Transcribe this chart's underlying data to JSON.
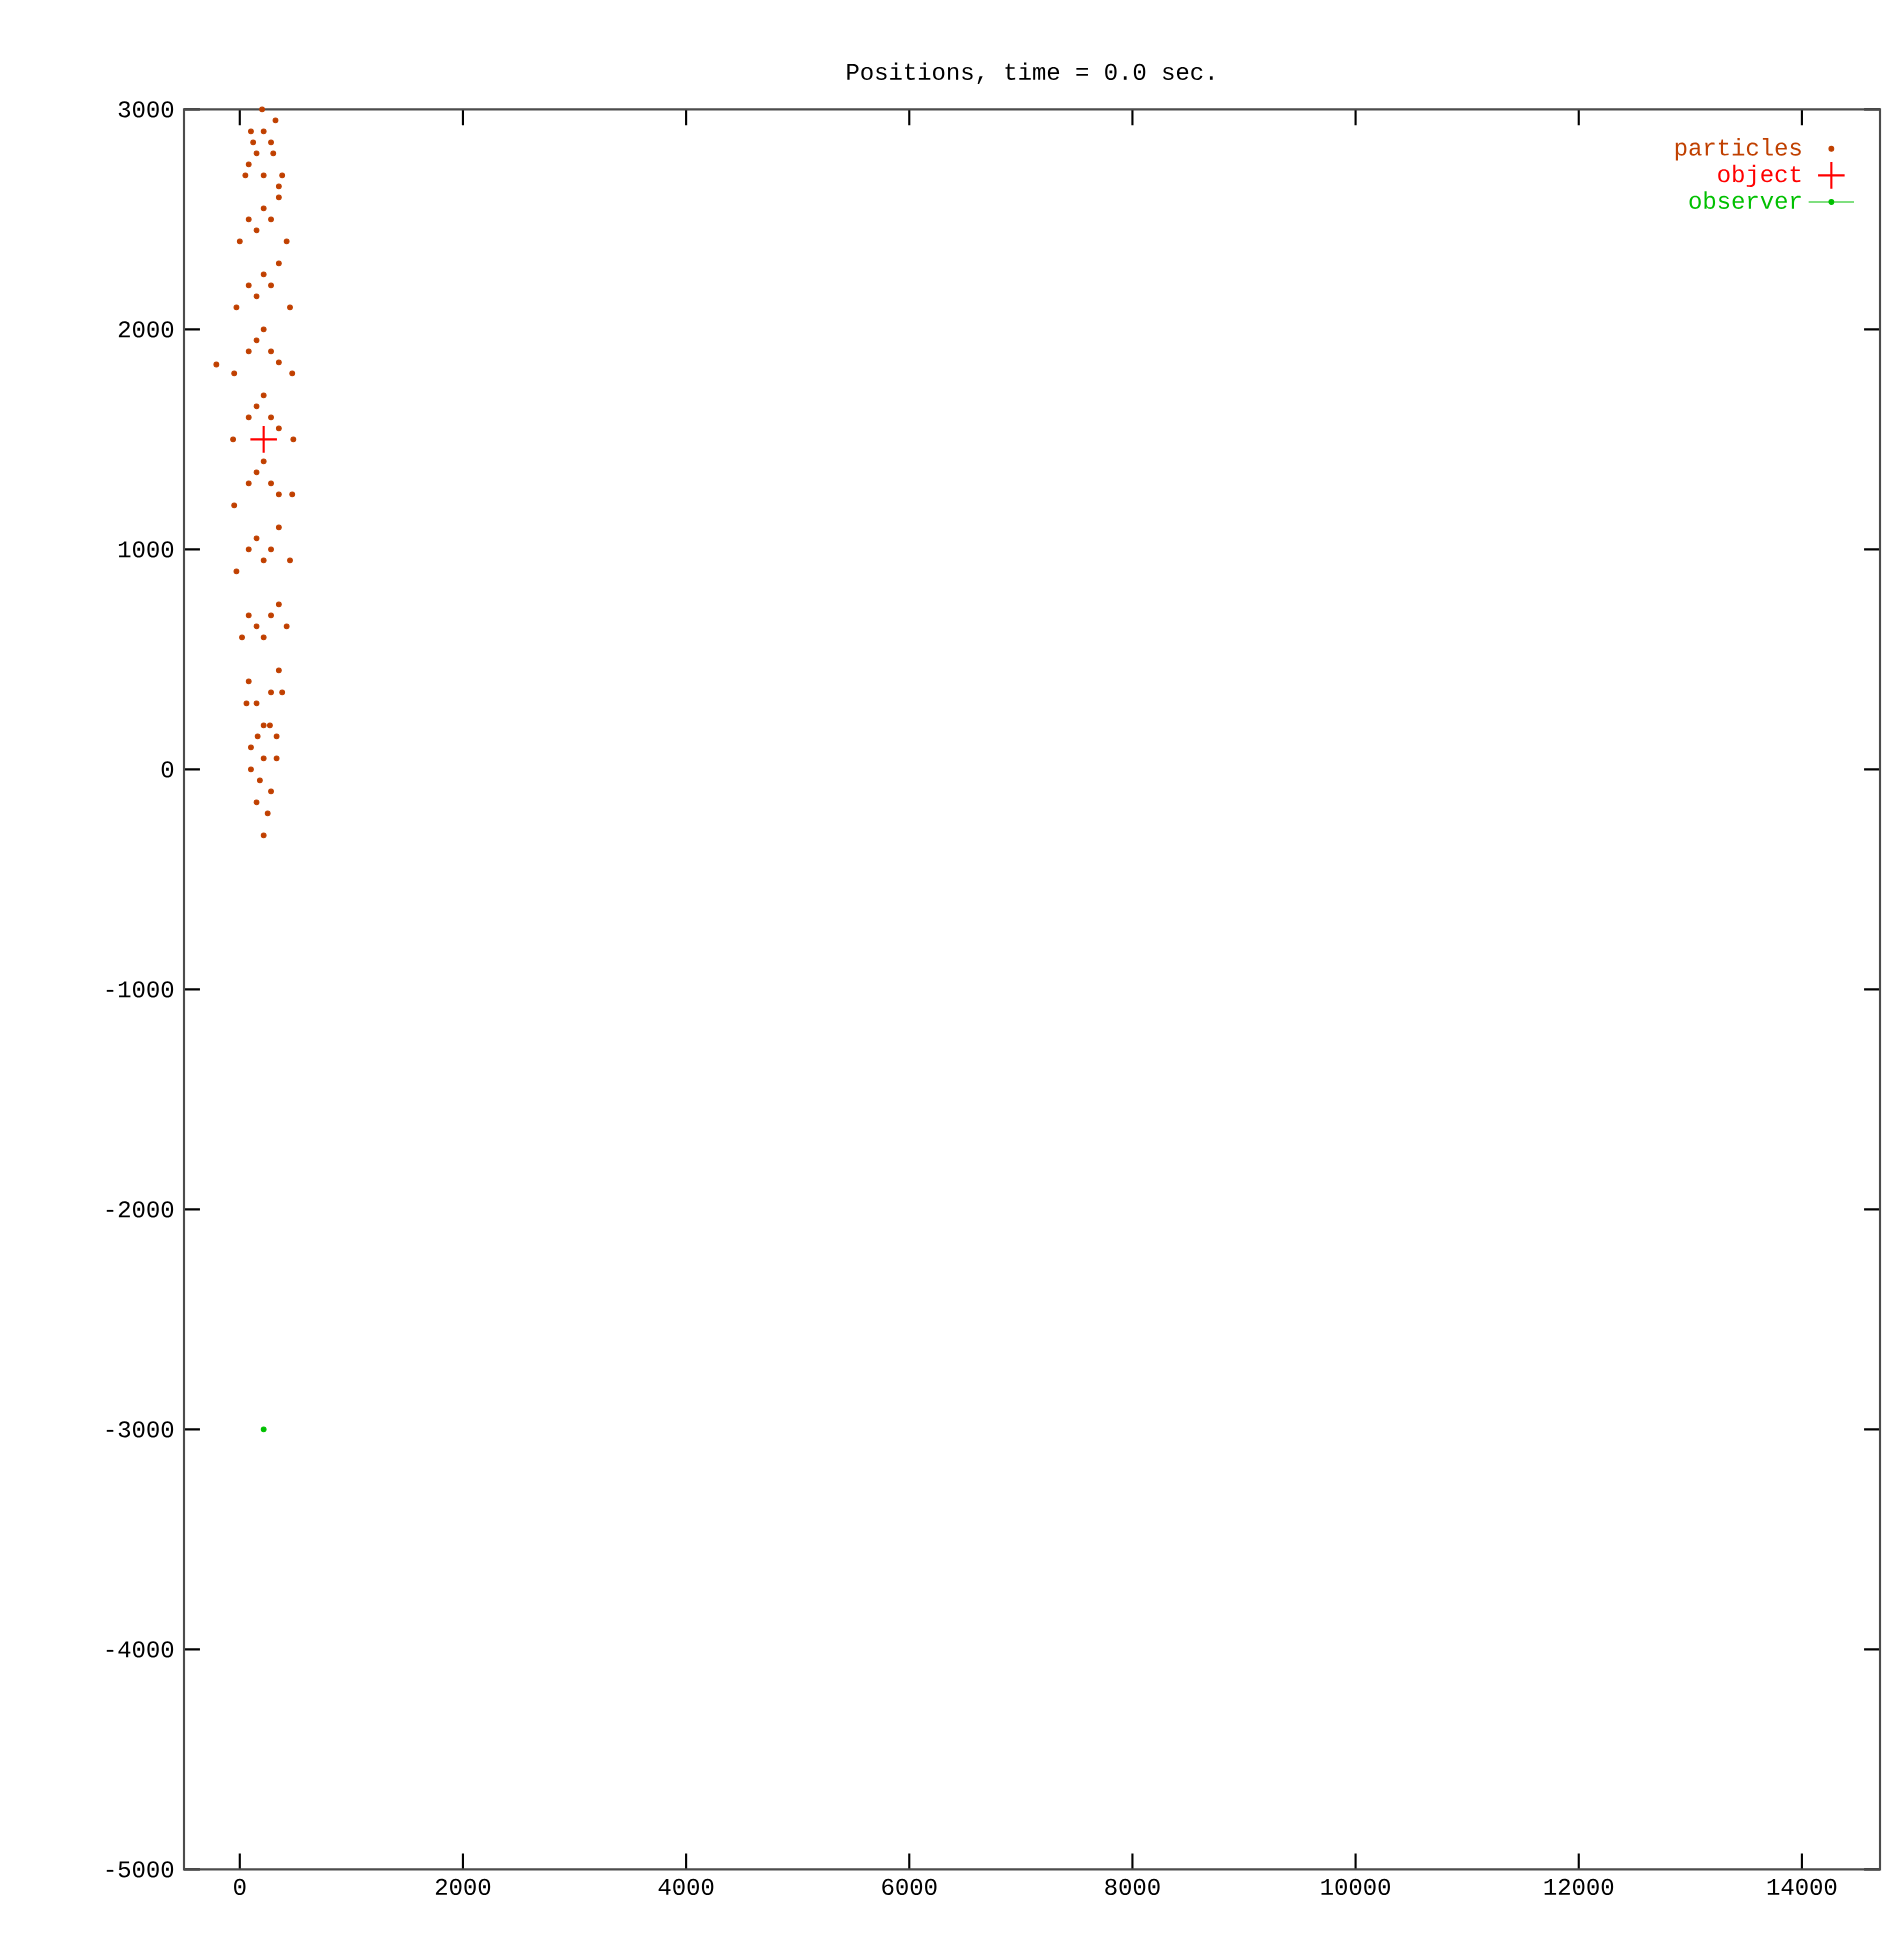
{
  "chart_data": {
    "type": "scatter",
    "title": "Positions, time = 0.0 sec.",
    "xlim": [
      -500,
      14700
    ],
    "xticks": [
      0,
      2000,
      4000,
      6000,
      8000,
      10000,
      12000,
      14000
    ],
    "ylim": [
      -5000,
      3000
    ],
    "yticks": [
      -5000,
      -4000,
      -3000,
      -2000,
      -1000,
      0,
      1000,
      2000,
      3000
    ],
    "grid": false,
    "legend": "top right",
    "series": [
      {
        "name": "particles",
        "color": "#c04000",
        "marker": "circle",
        "x": [
          214,
          150,
          280,
          100,
          330,
          60,
          380,
          20,
          420,
          -30,
          450,
          -50,
          470,
          -60,
          480,
          -50,
          470,
          -30,
          450,
          0,
          420,
          50,
          380,
          100,
          320,
          200,
          -210,
          80,
          150,
          214,
          280,
          350,
          80,
          150,
          214,
          280,
          350,
          80,
          150,
          214,
          280,
          350,
          80,
          150,
          214,
          280,
          350,
          80,
          150,
          214,
          280,
          350,
          80,
          150,
          214,
          280,
          350,
          80,
          150,
          214,
          280,
          350,
          80,
          150,
          214,
          280,
          350,
          80,
          150,
          214,
          280,
          350,
          100,
          160,
          214,
          270,
          330,
          120,
          214,
          300,
          180,
          250
        ],
        "values": [
          -300,
          -150,
          -100,
          0,
          50,
          300,
          350,
          600,
          650,
          900,
          950,
          1200,
          1250,
          1500,
          1500,
          1800,
          1800,
          2100,
          2100,
          2400,
          2400,
          2700,
          2700,
          2900,
          2950,
          3000,
          1840,
          400,
          300,
          200,
          350,
          450,
          700,
          650,
          600,
          700,
          750,
          1000,
          1050,
          950,
          1000,
          1100,
          1300,
          1350,
          1400,
          1300,
          1250,
          1600,
          1650,
          1700,
          1600,
          1550,
          1900,
          1950,
          2000,
          1900,
          1850,
          2200,
          2150,
          2250,
          2200,
          2300,
          2500,
          2450,
          2550,
          2500,
          2600,
          2750,
          2800,
          2700,
          2850,
          2650,
          100,
          150,
          50,
          200,
          150,
          2850,
          2900,
          2800,
          -50,
          -200
        ]
      },
      {
        "name": "object",
        "color": "#ff0000",
        "marker": "cross",
        "x": [
          214
        ],
        "values": [
          1500
        ]
      },
      {
        "name": "observer",
        "color": "#00c000",
        "type": "line",
        "marker": "circle",
        "line_style": "solid",
        "x": [
          214
        ],
        "values": [
          -3000
        ]
      }
    ]
  }
}
